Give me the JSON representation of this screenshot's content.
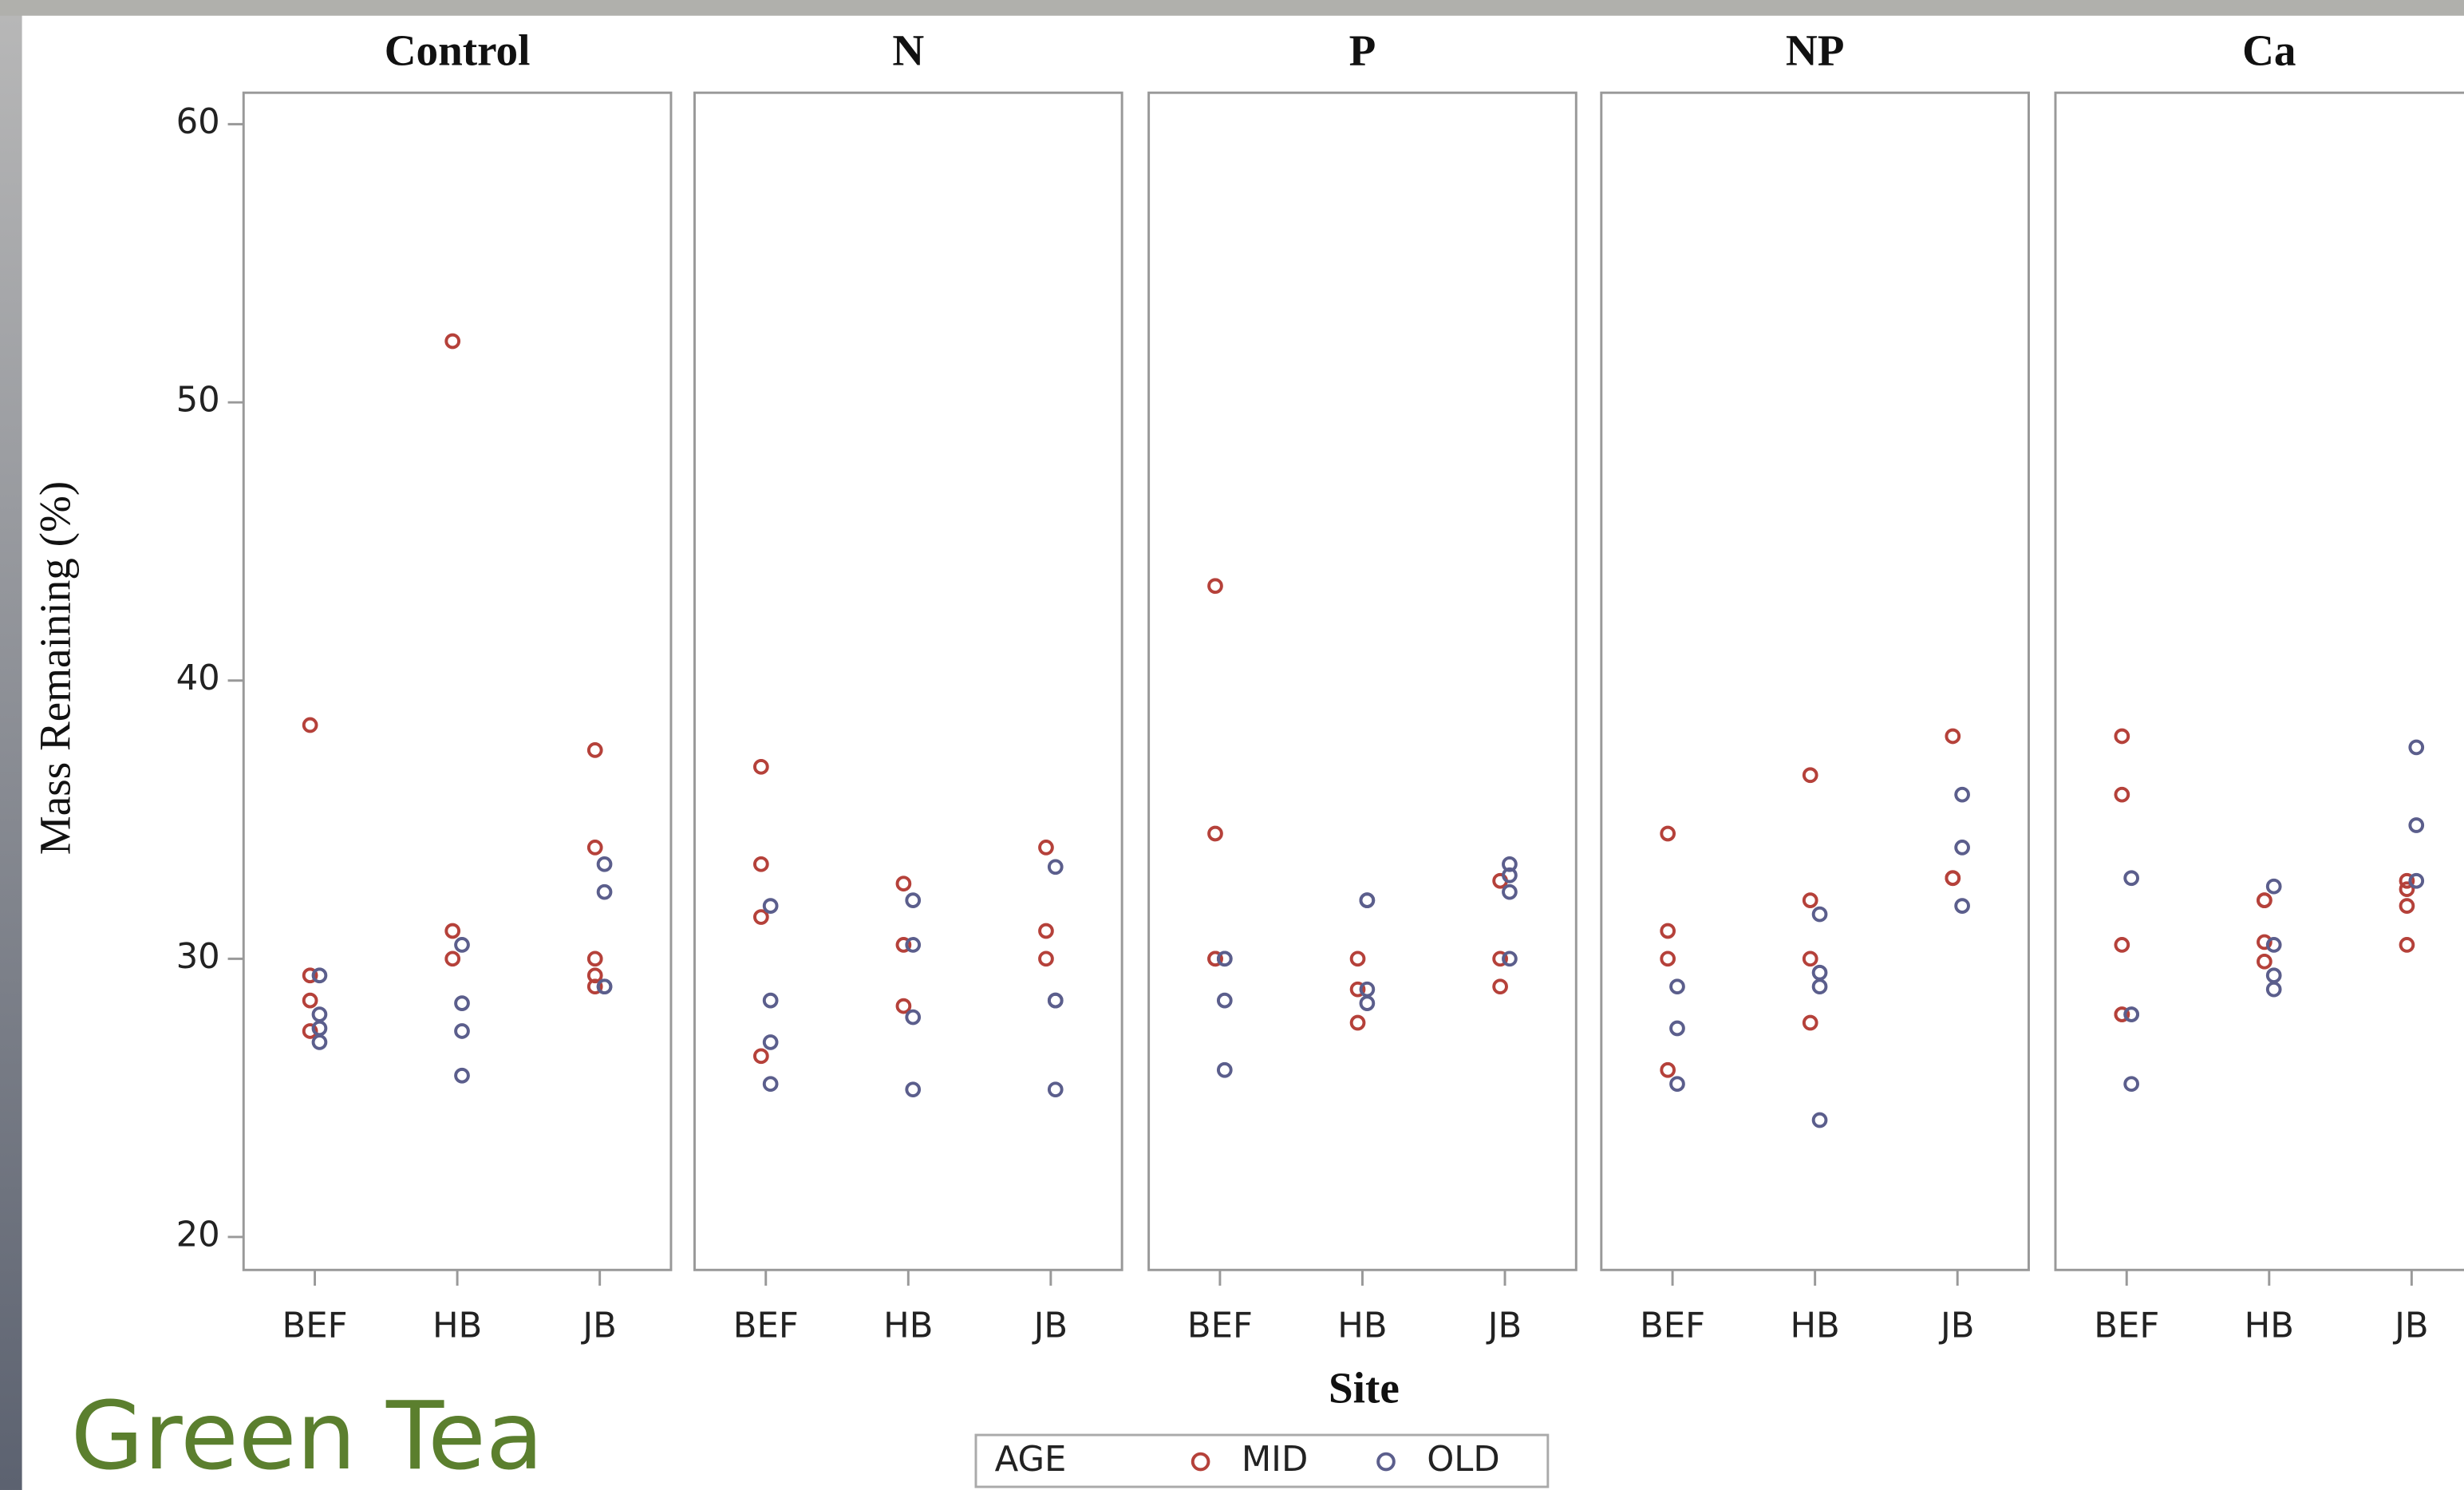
{
  "slide_title": "Green Tea",
  "chart_data": {
    "type": "scatter",
    "ylabel": "Mass Remaining (%)",
    "xlabel": "Site",
    "ylim": [
      20,
      60
    ],
    "yticks": [
      20,
      30,
      40,
      50,
      60
    ],
    "legend_title": "AGE",
    "legend": [
      {
        "name": "MID",
        "color": "#b5413a"
      },
      {
        "name": "OLD",
        "color": "#5b5e8c"
      }
    ],
    "panels": [
      {
        "title": "Control",
        "categories": [
          "BEF",
          "HB",
          "JB"
        ],
        "series": [
          {
            "x": [
              "BEF",
              "BEF",
              "BEF",
              "BEF",
              "HB",
              "HB",
              "HB",
              "JB",
              "JB",
              "JB",
              "JB",
              "JB"
            ],
            "values": [
              38.4,
              29.4,
              28.5,
              27.4,
              52.2,
              31.0,
              30.0,
              37.5,
              34.0,
              30.0,
              29.4,
              29.0
            ]
          },
          {
            "x": [
              "BEF",
              "BEF",
              "BEF",
              "BEF",
              "HB",
              "HB",
              "HB",
              "HB",
              "JB",
              "JB",
              "JB",
              "JB"
            ],
            "values": [
              29.4,
              28.0,
              27.5,
              27.0,
              30.5,
              28.4,
              27.4,
              25.8,
              33.4,
              32.4,
              29.0,
              29.0
            ]
          }
        ]
      },
      {
        "title": "N",
        "categories": [
          "BEF",
          "HB",
          "JB"
        ],
        "series": [
          {
            "x": [
              "BEF",
              "BEF",
              "BEF",
              "BEF",
              "HB",
              "HB",
              "HB",
              "JB",
              "JB",
              "JB"
            ],
            "values": [
              36.9,
              33.4,
              31.5,
              26.5,
              32.7,
              30.5,
              28.3,
              34.0,
              31.0,
              30.0
            ]
          },
          {
            "x": [
              "BEF",
              "BEF",
              "BEF",
              "BEF",
              "HB",
              "HB",
              "HB",
              "HB",
              "JB",
              "JB",
              "JB",
              "JB"
            ],
            "values": [
              31.9,
              28.5,
              27.0,
              25.5,
              32.1,
              30.5,
              27.9,
              25.3,
              33.3,
              28.5,
              28.5,
              25.3
            ]
          }
        ]
      },
      {
        "title": "P",
        "categories": [
          "BEF",
          "HB",
          "JB"
        ],
        "series": [
          {
            "x": [
              "BEF",
              "BEF",
              "BEF",
              "BEF",
              "HB",
              "HB",
              "HB",
              "JB",
              "JB",
              "JB"
            ],
            "values": [
              43.4,
              34.5,
              30.0,
              30.0,
              30.0,
              28.9,
              27.7,
              32.8,
              30.0,
              29.0
            ]
          },
          {
            "x": [
              "BEF",
              "BEF",
              "BEF",
              "BEF",
              "HB",
              "HB",
              "HB",
              "HB",
              "JB",
              "JB",
              "JB",
              "JB"
            ],
            "values": [
              30.0,
              30.0,
              28.5,
              26.0,
              32.1,
              32.1,
              28.9,
              28.4,
              33.4,
              33.0,
              32.4,
              30.0
            ]
          }
        ]
      },
      {
        "title": "NP",
        "categories": [
          "BEF",
          "HB",
          "JB"
        ],
        "series": [
          {
            "x": [
              "BEF",
              "BEF",
              "BEF",
              "BEF",
              "HB",
              "HB",
              "HB",
              "HB",
              "JB",
              "JB",
              "JB"
            ],
            "values": [
              34.5,
              31.0,
              30.0,
              26.0,
              36.6,
              32.1,
              30.0,
              27.7,
              38.0,
              32.9,
              32.9
            ]
          },
          {
            "x": [
              "BEF",
              "BEF",
              "BEF",
              "HB",
              "HB",
              "HB",
              "HB",
              "JB",
              "JB",
              "JB"
            ],
            "values": [
              29.0,
              27.5,
              25.5,
              31.6,
              29.5,
              29.0,
              24.2,
              35.9,
              34.0,
              31.9
            ]
          }
        ]
      },
      {
        "title": "Ca",
        "categories": [
          "BEF",
          "HB",
          "JB"
        ],
        "series": [
          {
            "x": [
              "BEF",
              "BEF",
              "BEF",
              "BEF",
              "BEF",
              "HB",
              "HB",
              "HB",
              "HB",
              "JB",
              "JB",
              "JB",
              "JB"
            ],
            "values": [
              38.0,
              35.9,
              30.5,
              28.0,
              28.0,
              32.1,
              32.1,
              30.6,
              29.9,
              32.8,
              32.5,
              31.9,
              30.5
            ]
          },
          {
            "x": [
              "BEF",
              "BEF",
              "BEF",
              "BEF",
              "HB",
              "HB",
              "HB",
              "HB",
              "JB",
              "JB",
              "JB"
            ],
            "values": [
              32.9,
              28.0,
              28.0,
              25.5,
              32.6,
              30.5,
              29.4,
              28.9,
              37.6,
              34.8,
              32.8
            ]
          }
        ]
      }
    ]
  }
}
